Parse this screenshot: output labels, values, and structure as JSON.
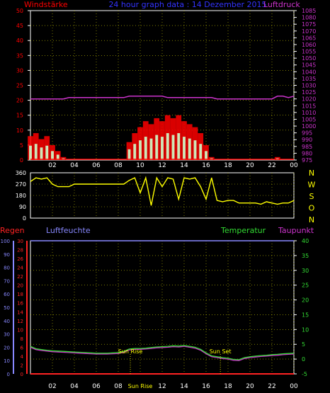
{
  "header": {
    "left_title": "Windstärke",
    "center_title": "24 hour graph data : 14 Dezember 2015",
    "right_title": "Luftdruck"
  },
  "colors": {
    "background": "#000000",
    "grid": "#c8c800",
    "axis_frame": "#ffffff",
    "wind": "#ff0000",
    "gust": "#ffffff",
    "wind_avg": "#ccffcc",
    "pressure": "#cc33cc",
    "direction": "#ffff00",
    "rain": "#ff2222",
    "humidity": "#8888ff",
    "temperature": "#33dd33",
    "dewpoint": "#cc33cc",
    "title_left": "#ff0000",
    "title_center": "#3333ff",
    "title_right": "#cc33cc",
    "compass": "#ffff00",
    "sun_markers": "#ffff00"
  },
  "x_ticks": [
    "02",
    "04",
    "06",
    "08",
    "10",
    "12",
    "14",
    "16",
    "18",
    "20",
    "22",
    "00"
  ],
  "bottom_x_ticks": [
    "02",
    "04",
    "06",
    "08",
    "Sun Rise",
    "12",
    "14",
    "16",
    "18",
    "20",
    "22",
    "00"
  ],
  "chart_data": [
    {
      "type": "area",
      "x": [
        0,
        0.5,
        1,
        1.5,
        2,
        2.5,
        3,
        3.5,
        4,
        4.5,
        5,
        5.5,
        6,
        6.5,
        7,
        7.5,
        8,
        8.5,
        9,
        9.5,
        10,
        10.5,
        11,
        11.5,
        12,
        12.5,
        13,
        13.5,
        14,
        14.5,
        15,
        15.5,
        16,
        16.5,
        17,
        17.5,
        18,
        18.5,
        19,
        19.5,
        20,
        20.5,
        21,
        21.5,
        22,
        22.5,
        23,
        23.5,
        24
      ],
      "series": [
        {
          "name": "Windstärke",
          "axis": "left",
          "values": [
            8,
            9,
            7,
            8,
            5,
            3,
            1,
            0,
            0,
            0,
            0,
            0,
            0,
            0,
            0,
            0,
            0,
            0,
            6,
            9,
            11,
            13,
            12,
            14,
            13,
            15,
            14,
            15,
            13,
            12,
            11,
            9,
            5,
            1,
            0,
            0,
            0,
            0,
            0,
            0,
            0,
            0,
            0,
            0,
            0,
            1,
            0,
            0,
            0
          ]
        },
        {
          "name": "Luftdruck",
          "axis": "right",
          "values": [
            1020,
            1020,
            1020,
            1020,
            1020,
            1020,
            1020,
            1021,
            1021,
            1021,
            1021,
            1021,
            1021,
            1021,
            1021,
            1021,
            1021,
            1021,
            1022,
            1022,
            1022,
            1022,
            1022,
            1022,
            1022,
            1021,
            1021,
            1021,
            1021,
            1021,
            1021,
            1021,
            1021,
            1021,
            1020,
            1020,
            1020,
            1020,
            1020,
            1020,
            1020,
            1020,
            1020,
            1020,
            1020,
            1022,
            1022,
            1021,
            1022
          ]
        }
      ],
      "title": "Windstärke",
      "ylabel_left": "Windstärke",
      "ylabel_right": "Luftdruck",
      "ylim_left": [
        0,
        50
      ],
      "ylim_right": [
        975,
        1085
      ],
      "y_ticks_left": [
        0,
        5,
        10,
        15,
        20,
        25,
        30,
        35,
        40,
        45,
        50
      ],
      "y_ticks_right": [
        975,
        980,
        985,
        990,
        995,
        1000,
        1005,
        1010,
        1015,
        1020,
        1025,
        1030,
        1035,
        1040,
        1045,
        1050,
        1055,
        1060,
        1065,
        1070,
        1075,
        1080,
        1085
      ],
      "xlim": [
        0,
        24
      ],
      "grid": true
    },
    {
      "type": "line",
      "x": [
        0,
        0.5,
        1,
        1.5,
        2,
        2.5,
        3,
        3.5,
        4,
        4.5,
        5,
        5.5,
        6,
        6.5,
        7,
        7.5,
        8,
        8.5,
        9,
        9.5,
        10,
        10.5,
        11,
        11.5,
        12,
        12.5,
        13,
        13.5,
        14,
        14.5,
        15,
        15.5,
        16,
        16.5,
        17,
        17.5,
        18,
        18.5,
        19,
        19.5,
        20,
        20.5,
        21,
        21.5,
        22,
        22.5,
        23,
        23.5,
        24
      ],
      "series": [
        {
          "name": "Windrichtung",
          "values": [
            290,
            320,
            310,
            320,
            270,
            250,
            250,
            250,
            270,
            270,
            270,
            270,
            270,
            270,
            270,
            270,
            270,
            270,
            300,
            320,
            200,
            320,
            100,
            320,
            250,
            320,
            310,
            150,
            320,
            310,
            320,
            250,
            150,
            320,
            140,
            130,
            140,
            140,
            120,
            120,
            120,
            120,
            110,
            130,
            120,
            110,
            120,
            120,
            140
          ]
        }
      ],
      "ylim": [
        0,
        360
      ],
      "y_ticks": [
        0,
        90,
        180,
        270,
        360
      ],
      "compass_labels": [
        "N",
        "W",
        "S",
        "O",
        "N"
      ],
      "xlim": [
        0,
        24
      ],
      "grid": true
    },
    {
      "type": "line",
      "x": [
        0,
        0.5,
        1,
        1.5,
        2,
        2.5,
        3,
        3.5,
        4,
        4.5,
        5,
        5.5,
        6,
        6.5,
        7,
        7.5,
        8,
        8.5,
        9,
        9.5,
        10,
        10.5,
        11,
        11.5,
        12,
        12.5,
        13,
        13.5,
        14,
        14.5,
        15,
        15.5,
        16,
        16.5,
        17,
        17.5,
        18,
        18.5,
        19,
        19.5,
        20,
        20.5,
        21,
        21.5,
        22,
        22.5,
        23,
        23.5,
        24
      ],
      "series": [
        {
          "name": "Regen",
          "axis": "left_outer",
          "values": [
            0,
            0,
            0,
            0,
            0,
            0,
            0,
            0,
            0,
            0,
            0,
            0,
            0,
            0,
            0,
            0,
            0,
            0,
            0,
            0,
            0,
            0,
            0,
            0,
            0,
            0,
            0,
            0,
            0,
            0,
            0,
            0,
            0,
            0,
            0,
            0,
            0,
            0,
            0,
            0,
            0,
            0,
            0,
            0,
            0,
            0,
            0,
            0,
            0
          ]
        },
        {
          "name": "Luftfeuchte",
          "axis": "left_inner",
          "values": [
            100,
            100,
            100,
            100,
            100,
            100,
            100,
            100,
            100,
            100,
            100,
            100,
            100,
            100,
            100,
            100,
            100,
            100,
            100,
            100,
            100,
            100,
            100,
            100,
            100,
            100,
            100,
            100,
            100,
            100,
            100,
            100,
            100,
            100,
            100,
            100,
            100,
            100,
            100,
            100,
            100,
            100,
            100,
            100,
            100,
            100,
            100,
            100,
            100
          ]
        },
        {
          "name": "Temperatur",
          "axis": "right",
          "values": [
            4.3,
            3.5,
            3.2,
            3.0,
            2.8,
            2.7,
            2.6,
            2.5,
            2.4,
            2.3,
            2.2,
            2.1,
            2.0,
            2.0,
            2.0,
            2.1,
            2.2,
            2.6,
            3.4,
            3.6,
            3.6,
            3.7,
            3.9,
            4.1,
            4.2,
            4.3,
            4.5,
            4.4,
            4.6,
            4.3,
            4.0,
            3.3,
            2.1,
            1.1,
            0.8,
            0.5,
            0.3,
            -0.1,
            -0.2,
            0.5,
            0.8,
            1.0,
            1.2,
            1.3,
            1.5,
            1.6,
            1.8,
            1.9,
            2.0
          ]
        },
        {
          "name": "Taupunkt",
          "axis": "right",
          "values": [
            4.0,
            3.2,
            2.9,
            2.7,
            2.5,
            2.4,
            2.3,
            2.2,
            2.1,
            2.0,
            1.9,
            1.8,
            1.7,
            1.7,
            1.7,
            1.8,
            1.9,
            2.3,
            3.1,
            3.3,
            3.3,
            3.4,
            3.6,
            3.8,
            3.9,
            4.0,
            4.2,
            4.1,
            4.3,
            4.0,
            3.7,
            3.0,
            1.8,
            0.8,
            0.5,
            0.2,
            0.0,
            -0.4,
            -0.5,
            0.2,
            0.5,
            0.7,
            0.9,
            1.0,
            1.2,
            1.3,
            1.5,
            1.6,
            1.7
          ]
        }
      ],
      "ylabel_left_outer": "Regen",
      "ylabel_left_inner": "Luftfeuchte",
      "ylabel_right_1": "Temperatur",
      "ylabel_right_2": "Taupunkt",
      "ylim_left_outer": [
        0,
        30
      ],
      "ylim_left_inner": [
        0,
        100
      ],
      "ylim_right": [
        -5,
        40
      ],
      "y_ticks_left_outer": [
        0,
        2,
        4,
        6,
        8,
        10,
        12,
        14,
        16,
        18,
        20,
        22,
        24,
        26,
        28,
        30
      ],
      "y_ticks_left_inner": [
        0,
        10,
        20,
        30,
        40,
        50,
        60,
        70,
        80,
        90,
        100
      ],
      "y_ticks_right": [
        -5,
        0,
        5,
        10,
        15,
        20,
        25,
        30,
        35,
        40
      ],
      "xlim": [
        0,
        24
      ],
      "annotations": [
        {
          "text": "Sun Rise",
          "x": 9.1
        },
        {
          "text": "Sun Set",
          "x": 17.3
        }
      ],
      "grid": true
    }
  ]
}
